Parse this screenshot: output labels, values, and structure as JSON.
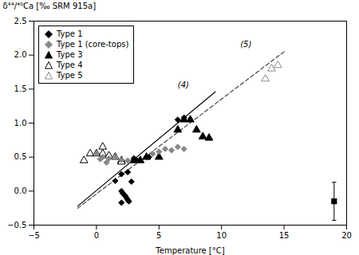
{
  "chart_data": {
    "type": "scatter",
    "xlabel": "Temperature [°C]",
    "ylabel": "δ⁴⁴/⁴⁰Ca [‰ SRM 915a]",
    "xlim": [
      -5,
      20
    ],
    "ylim": [
      -0.5,
      2.5
    ],
    "xticks": [
      -5,
      0,
      5,
      10,
      15,
      20
    ],
    "yticks": [
      -0.5,
      {
        "value": 0,
        "label": "0.0"
      },
      0.5,
      {
        "value": 1,
        "label": "1.0"
      },
      1.5,
      {
        "value": 2,
        "label": "2.0"
      },
      2.5
    ],
    "grid": false,
    "legend": "upper left",
    "series": [
      {
        "name": "Type 1",
        "color": "#000000",
        "marker": "diamond",
        "x": [
          1.5,
          2.0,
          2.5,
          3.0,
          3.2,
          3.5,
          4.0,
          4.2,
          6.5,
          7.0,
          2.0,
          2.1,
          2.2,
          2.3,
          2.4,
          2.5,
          2.6,
          2.0,
          2.8,
          3.0
        ],
        "values": [
          0.15,
          0.25,
          0.28,
          0.46,
          0.46,
          0.46,
          0.5,
          0.5,
          1.05,
          1.08,
          0.0,
          -0.03,
          -0.05,
          -0.07,
          -0.1,
          -0.13,
          -0.15,
          -0.17,
          0.14,
          0.48
        ]
      },
      {
        "name": "Type 1 (core-tops)",
        "color": "#888888",
        "marker": "diamond",
        "x": [
          0.0,
          0.3,
          0.5,
          0.8,
          1.0,
          1.5,
          2.0,
          2.5,
          3.0,
          4.5,
          5.0,
          5.5,
          6.0,
          6.5,
          7.0
        ],
        "values": [
          0.55,
          0.47,
          0.5,
          0.42,
          0.48,
          0.5,
          0.46,
          0.45,
          0.48,
          0.55,
          0.58,
          0.62,
          0.6,
          0.65,
          0.62
        ]
      },
      {
        "name": "Type 3",
        "color": "#000000",
        "marker": "triangle",
        "x": [
          3.0,
          3.5,
          4.0,
          5.0,
          6.5,
          7.0,
          7.5,
          8.0,
          8.5,
          9.0
        ],
        "values": [
          0.45,
          0.45,
          0.5,
          0.5,
          0.9,
          1.05,
          1.05,
          0.9,
          0.8,
          0.78
        ]
      },
      {
        "name": "Type 4",
        "color": "#000000",
        "marker": "triangle-open",
        "x": [
          -1.0,
          -0.5,
          0.0,
          0.5,
          0.5,
          1.0,
          1.5,
          2.0,
          2.0
        ],
        "values": [
          0.45,
          0.55,
          0.55,
          0.55,
          0.65,
          0.52,
          0.5,
          0.45,
          0.43
        ]
      },
      {
        "name": "Type 5",
        "color": "#888888",
        "marker": "triangle-open",
        "x": [
          13.5,
          14.0,
          14.5
        ],
        "values": [
          1.65,
          1.8,
          1.85
        ]
      },
      {
        "type": "line",
        "color": "#000000",
        "line_style": "solid",
        "x": [
          -1.5,
          9.5
        ],
        "values": [
          -0.22,
          1.46
        ]
      },
      {
        "type": "line",
        "color": "#444444",
        "line_style": "dashed",
        "x": [
          -1.5,
          15.0
        ],
        "values": [
          -0.25,
          2.05
        ]
      }
    ],
    "annotations": [
      {
        "text": "(4)",
        "x": 6.5,
        "y": 1.52
      },
      {
        "text": "(5)",
        "x": 11.5,
        "y": 2.12
      }
    ],
    "error_bars": [
      {
        "x": 19.0,
        "y": -0.15,
        "yerr": 0.28,
        "color": "#000000",
        "marker": "square"
      }
    ]
  }
}
